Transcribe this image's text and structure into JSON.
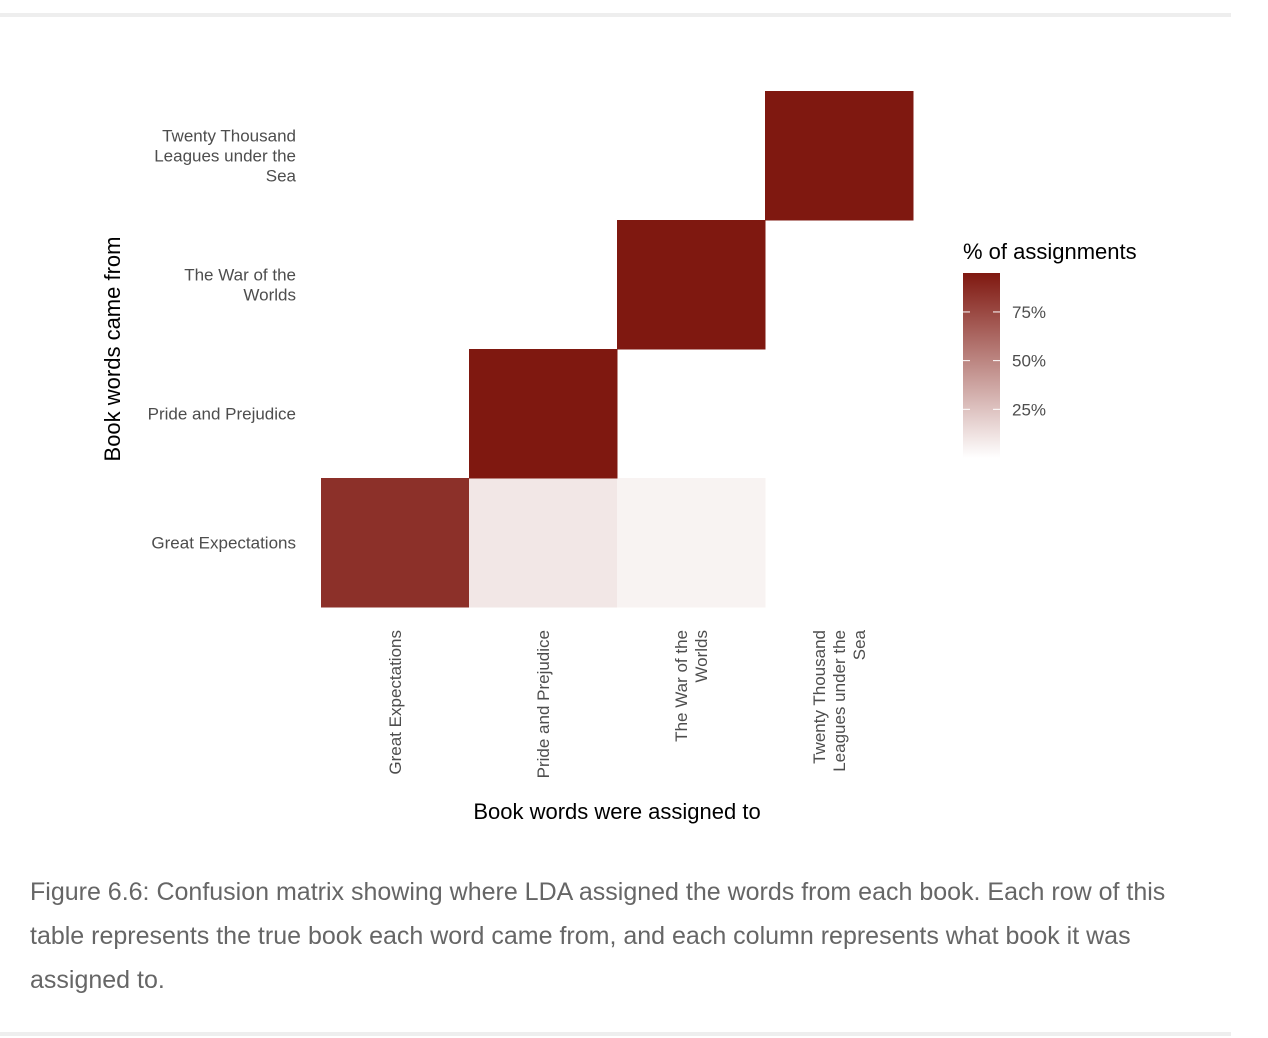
{
  "chart_data": {
    "type": "heatmap",
    "xlabel": "Book words were assigned to",
    "ylabel": "Book words came from",
    "x_categories": [
      [
        "Great Expectations"
      ],
      [
        "Pride and Prejudice"
      ],
      [
        "The War of the",
        "Worlds"
      ],
      [
        "Twenty Thousand",
        "Leagues under the",
        "Sea"
      ]
    ],
    "y_categories": [
      [
        "Great Expectations"
      ],
      [
        "Pride and Prejudice"
      ],
      [
        "The War of the",
        "Worlds"
      ],
      [
        "Twenty Thousand",
        "Leagues under the",
        "Sea"
      ]
    ],
    "cells": [
      {
        "row": 0,
        "col": 0,
        "value": 0.85
      },
      {
        "row": 0,
        "col": 1,
        "value": 0.1
      },
      {
        "row": 0,
        "col": 2,
        "value": 0.05
      },
      {
        "row": 1,
        "col": 1,
        "value": 1.0
      },
      {
        "row": 2,
        "col": 2,
        "value": 1.0
      },
      {
        "row": 3,
        "col": 3,
        "value": 1.0
      }
    ],
    "legend": {
      "title": "% of assignments",
      "ticks": [
        {
          "value": 0.25,
          "label": "25%"
        },
        {
          "value": 0.5,
          "label": "50%"
        },
        {
          "value": 0.75,
          "label": "75%"
        }
      ],
      "range": [
        0,
        0.95
      ],
      "low_color": "#ffffff",
      "high_color": "#7f1810",
      "position": "right"
    },
    "grid": false
  },
  "caption": "Figure 6.6: Confusion matrix showing where LDA assigned the words from each book. Each row of this table represents the true book each word came from, and each column represents what book it was assigned to."
}
